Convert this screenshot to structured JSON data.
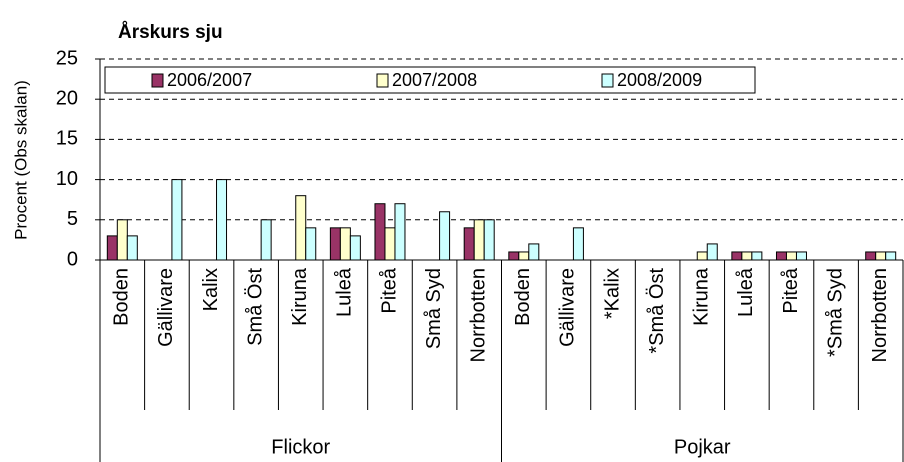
{
  "chart_data": {
    "type": "bar",
    "title": "Årskurs sju",
    "y_label": "Procent (Obs skalan)",
    "groups": [
      {
        "name": "Flickor",
        "categories": [
          "Boden",
          "Gällivare",
          "Kalix",
          "Små Öst",
          "Kiruna",
          "Luleå",
          "Piteå",
          "Små Syd",
          "Norrbotten"
        ]
      },
      {
        "name": "Pojkar",
        "categories": [
          "Boden",
          "Gällivare",
          "*Kalix",
          "*Små Öst",
          "Kiruna",
          "Luleå",
          "Piteå",
          "*Små Syd",
          "Norrbotten"
        ]
      }
    ],
    "series": [
      {
        "name": "2006/2007",
        "color": "#993366",
        "values": [
          3,
          0,
          0,
          0,
          0,
          4,
          7,
          0,
          4,
          1,
          0,
          0,
          0,
          0,
          1,
          1,
          0,
          1
        ]
      },
      {
        "name": "2007/2008",
        "color": "#ffffcc",
        "values": [
          5,
          0,
          0,
          0,
          8,
          4,
          4,
          0,
          5,
          1,
          0,
          0,
          0,
          1,
          1,
          1,
          0,
          1
        ]
      },
      {
        "name": "2008/2009",
        "color": "#ccffff",
        "values": [
          3,
          10,
          10,
          5,
          4,
          3,
          7,
          6,
          5,
          2,
          4,
          0,
          0,
          2,
          1,
          1,
          0,
          1
        ]
      }
    ],
    "ylim": [
      0,
      25
    ],
    "yticks": [
      0,
      5,
      10,
      15,
      20,
      25
    ],
    "grid": true,
    "legend": "top"
  }
}
